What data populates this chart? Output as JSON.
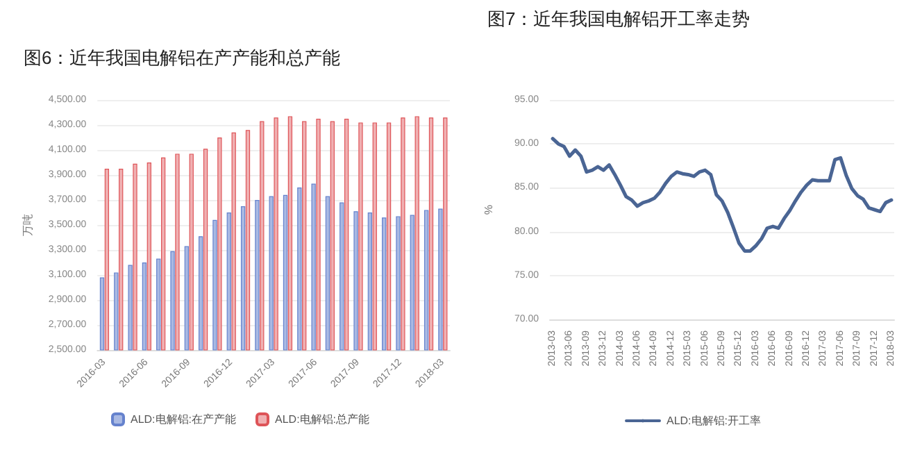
{
  "chart_data": [
    {
      "type": "bar",
      "title": "图6：近年我国电解铝在产产能和总产能",
      "ylabel": "万吨",
      "categories": [
        "2016-03",
        null,
        null,
        "2016-06",
        null,
        null,
        "2016-09",
        null,
        null,
        "2016-12",
        null,
        null,
        "2017-03",
        null,
        null,
        "2017-06",
        null,
        null,
        "2017-09",
        null,
        null,
        "2017-12",
        null,
        null,
        "2018-03"
      ],
      "series": [
        {
          "name": "ALD:电解铝:在产产能",
          "color": "#a9b9e3",
          "values": [
            3080,
            3120,
            3180,
            3200,
            3230,
            3290,
            3330,
            3410,
            3540,
            3600,
            3650,
            3700,
            3730,
            3740,
            3800,
            3830,
            3730,
            3680,
            3610,
            3600,
            3560,
            3570,
            3580,
            3620,
            3630
          ]
        },
        {
          "name": "ALD:电解铝:总产能",
          "color": "#f0b0b2",
          "values": [
            3950,
            3950,
            3990,
            4000,
            4040,
            4070,
            4070,
            4110,
            4200,
            4240,
            4260,
            4330,
            4360,
            4370,
            4330,
            4350,
            4330,
            4350,
            4320,
            4320,
            4320,
            4360,
            4370,
            4360,
            4360
          ]
        }
      ],
      "ylim": [
        2500,
        4500
      ],
      "yticks": [
        {
          "value": 2500,
          "label": "2,500.00"
        },
        {
          "value": 2700,
          "label": "2,700.00"
        },
        {
          "value": 2900,
          "label": "2,900.00"
        },
        {
          "value": 3100,
          "label": "3,100.00"
        },
        {
          "value": 3300,
          "label": "3,300.00"
        },
        {
          "value": 3500,
          "label": "3,500.00"
        },
        {
          "value": 3700,
          "label": "3,700.00"
        },
        {
          "value": 3900,
          "label": "3,900.00"
        },
        {
          "value": 4100,
          "label": "4,100.00"
        },
        {
          "value": 4300,
          "label": "4,300.00"
        },
        {
          "value": 4500,
          "label": "4,500.00"
        }
      ],
      "grid": "y",
      "legend": "bottom"
    },
    {
      "type": "line",
      "title": "图7：近年我国电解铝开工率走势",
      "ylabel": "%",
      "categories": [
        "2013-03",
        null,
        null,
        "2013-06",
        null,
        null,
        "2013-09",
        null,
        null,
        "2013-12",
        null,
        null,
        "2014-03",
        null,
        null,
        "2014-06",
        null,
        null,
        "2014-09",
        null,
        null,
        "2014-12",
        null,
        null,
        "2015-03",
        null,
        null,
        "2015-06",
        null,
        null,
        "2015-09",
        null,
        null,
        "2015-12",
        null,
        null,
        "2016-03",
        null,
        null,
        "2016-06",
        null,
        null,
        "2016-09",
        null,
        null,
        "2016-12",
        null,
        null,
        "2017-03",
        null,
        null,
        "2017-06",
        null,
        null,
        "2017-09",
        null,
        null,
        "2017-12",
        null,
        null,
        "2018-03"
      ],
      "series": [
        {
          "name": "ALD:电解铝:开工率",
          "color": "#4a6594",
          "values": [
            90.6,
            90.0,
            89.7,
            88.6,
            89.3,
            88.6,
            86.8,
            87.0,
            87.4,
            87.0,
            87.6,
            86.5,
            85.3,
            84.0,
            83.6,
            82.9,
            83.3,
            83.5,
            83.8,
            84.5,
            85.5,
            86.3,
            86.8,
            86.6,
            86.5,
            86.3,
            86.8,
            87.0,
            86.5,
            84.2,
            83.5,
            82.2,
            80.5,
            78.7,
            77.8,
            77.8,
            78.4,
            79.2,
            80.4,
            80.6,
            80.4,
            81.5,
            82.4,
            83.5,
            84.5,
            85.3,
            85.9,
            85.8,
            85.8,
            85.8,
            88.2,
            88.4,
            86.4,
            84.9,
            84.1,
            83.7,
            82.7,
            82.5,
            82.3,
            83.3,
            83.6
          ]
        }
      ],
      "ylim": [
        70,
        95
      ],
      "yticks": [
        {
          "value": 70,
          "label": "70.00"
        },
        {
          "value": 75,
          "label": "75.00"
        },
        {
          "value": 80,
          "label": "80.00"
        },
        {
          "value": 85,
          "label": "85.00"
        },
        {
          "value": 90,
          "label": "90.00"
        },
        {
          "value": 95,
          "label": "95.00"
        }
      ],
      "grid": "y",
      "legend": "bottom",
      "marker": "none",
      "line_style": "solid"
    }
  ]
}
